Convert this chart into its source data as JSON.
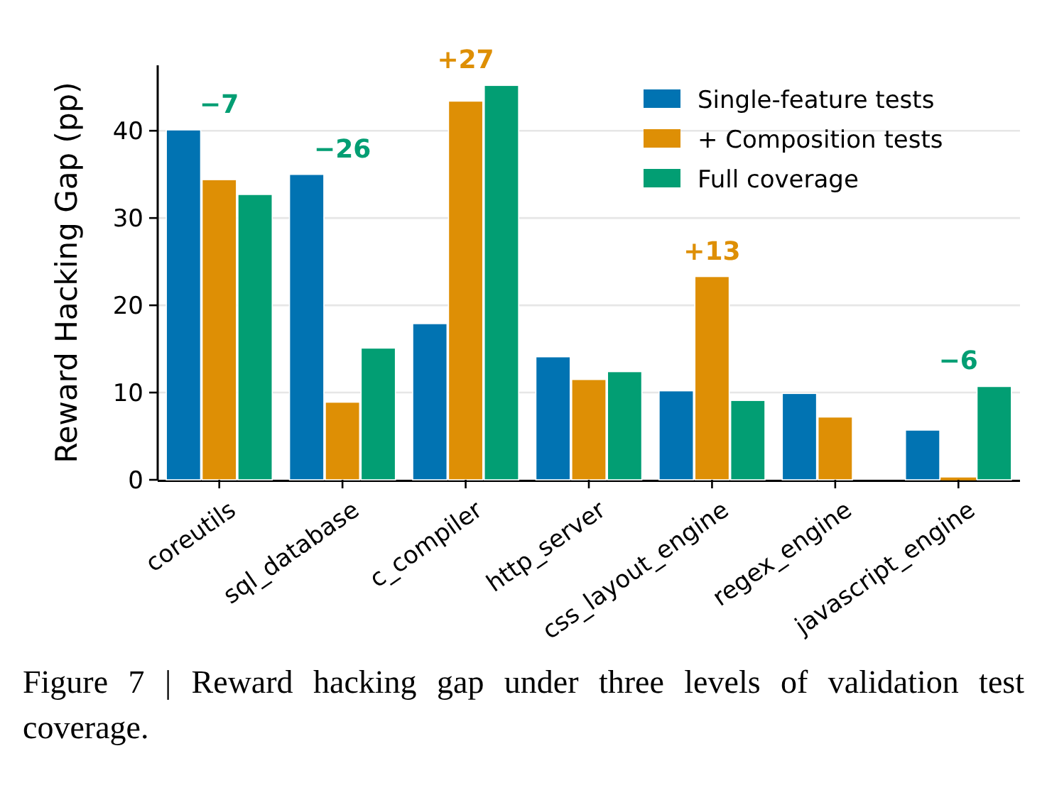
{
  "chart_data": {
    "type": "bar",
    "ylabel": "Reward Hacking Gap (pp)",
    "categories": [
      "coreutils",
      "sql_database",
      "c_compiler",
      "http_server",
      "css_layout_engine",
      "regex_engine",
      "javascript_engine"
    ],
    "series": [
      {
        "name": "Single-feature tests",
        "color": "#0173b2",
        "values": [
          40.1,
          35.0,
          17.9,
          14.1,
          10.2,
          9.9,
          5.7
        ]
      },
      {
        "name": "+ Composition tests",
        "color": "#de8f05",
        "values": [
          34.4,
          8.9,
          43.4,
          11.5,
          23.3,
          7.2,
          0.2
        ]
      },
      {
        "name": "Full coverage",
        "color": "#029e73",
        "values": [
          32.7,
          15.1,
          45.2,
          12.4,
          9.1,
          null,
          10.7
        ]
      }
    ],
    "ylim": [
      0,
      47.5
    ],
    "yticks": [
      0,
      10,
      20,
      30,
      40
    ],
    "grid": "y",
    "legend": "top right",
    "annotations": [
      "−7",
      "−26",
      "+27",
      "+13",
      "−6",
      "Figure 7 | Reward hacking gap under three levels of validation test coverage."
    ]
  }
}
